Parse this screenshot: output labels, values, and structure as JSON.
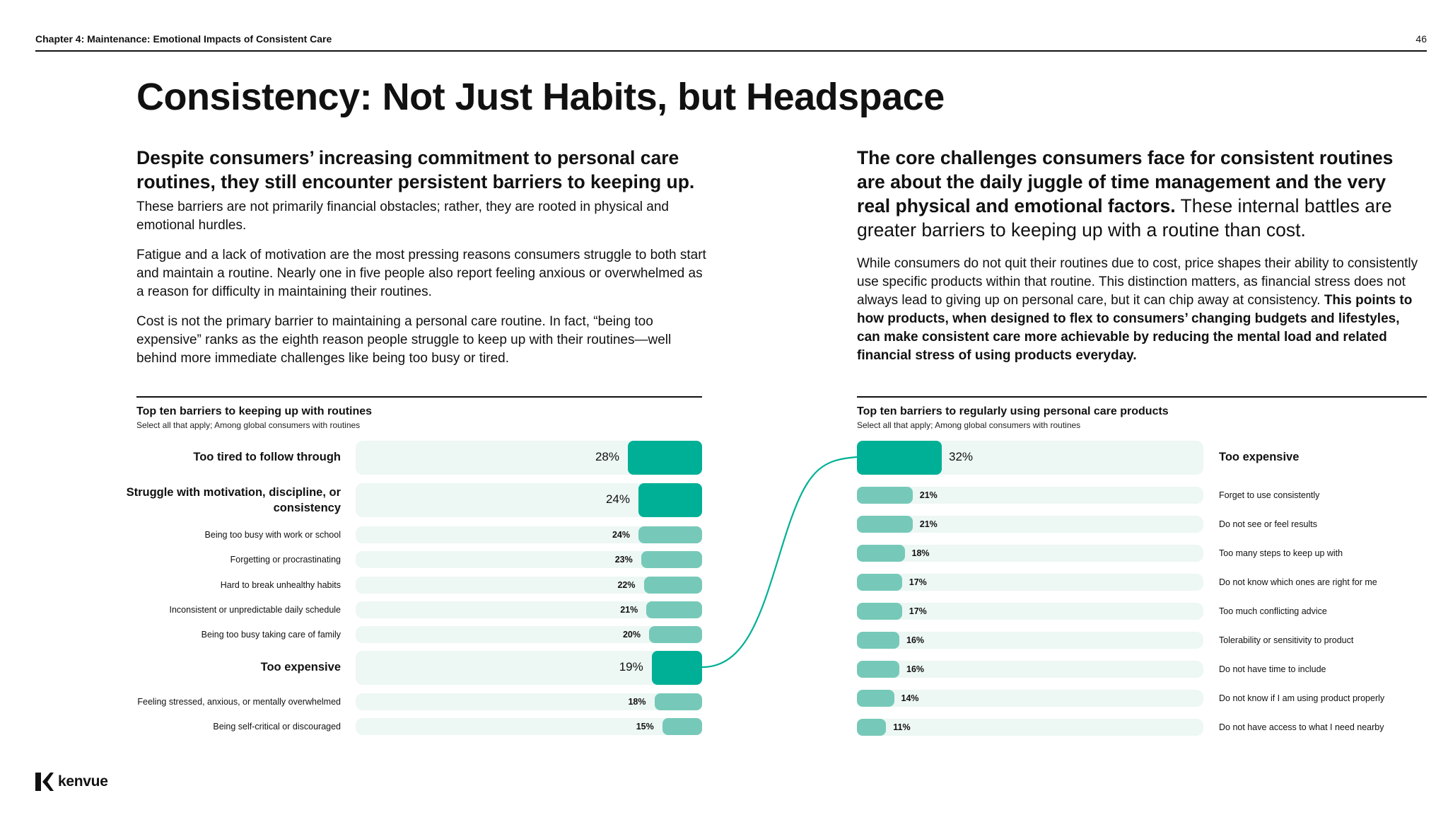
{
  "header": {
    "chapter": "Chapter 4: Maintenance: Emotional Impacts of Consistent Care",
    "page_number": "46"
  },
  "title": "Consistency: Not Just Habits, but Headspace",
  "left": {
    "lead": "Despite consumers’ increasing commitment to personal care routines, they still encounter persistent barriers to keeping up.",
    "paragraphs": [
      "These barriers are not primarily financial obstacles; rather, they are rooted in physical and emotional hurdles.",
      "Fatigue and a lack of motivation are the most pressing reasons consumers struggle to both start and maintain a routine. Nearly one in five people also report feeling anxious or overwhelmed as a reason for difficulty in maintaining their routines.",
      "Cost is not the primary barrier to maintaining a personal care routine. In fact, “being too expensive” ranks as the eighth reason people struggle to keep up with their routines—well behind more immediate challenges like being too busy or tired."
    ]
  },
  "right": {
    "lead_bold": "The core challenges consumers face for consistent routines are about the daily juggle of time management and the very real physical and emotional factors.",
    "lead_regular": " These internal battles are greater barriers to keeping up with a routine than cost.",
    "paragraph_regular": "While consumers do not quit their routines due to cost, price shapes their ability to consistently use specific products within that routine. This distinction matters, as financial stress does not always lead to giving up on personal care, but it can chip away at consistency. ",
    "paragraph_bold": "This points to how products, when designed to flex to consumers’ changing budgets and lifestyles, can make consistent care more achievable by reducing the mental load and related financial stress of using products everyday."
  },
  "chart_data": [
    {
      "type": "bar",
      "title": "Top ten barriers to keeping up with routines",
      "subtitle": "Select all that apply; Among global consumers with routines",
      "categories": [
        "Too tired to follow through",
        "Struggle with motivation, discipline, or consistency",
        "Being too busy with work or school",
        "Forgetting or procrastinating",
        "Hard to break unhealthy habits",
        "Inconsistent or unpredictable daily schedule",
        "Being too busy taking care of family",
        "Too expensive",
        "Feeling stressed, anxious, or mentally overwhelmed",
        "Being self-critical or discouraged"
      ],
      "values": [
        28,
        24,
        24,
        23,
        22,
        21,
        20,
        19,
        18,
        15
      ],
      "value_labels": [
        "28%",
        "24%",
        "24%",
        "23%",
        "22%",
        "21%",
        "20%",
        "19%",
        "18%",
        "15%"
      ],
      "highlighted": [
        true,
        true,
        false,
        false,
        false,
        false,
        false,
        true,
        false,
        false
      ],
      "orientation": "horizontal",
      "direction": "right-aligned",
      "xlim": [
        0,
        100
      ],
      "colors": {
        "highlight": "#00b096",
        "normal": "#76c9b8",
        "track": "#edf7f4"
      }
    },
    {
      "type": "bar",
      "title": "Top ten barriers to regularly using personal care products",
      "subtitle": "Select all that apply; Among global consumers with routines",
      "categories": [
        "Too expensive",
        "Forget to use consistently",
        "Do not see or feel results",
        "Too many steps to keep up with",
        "Do not know which ones are right for me",
        "Too much conflicting advice",
        "Tolerability or sensitivity to product",
        "Do not have time to include",
        "Do not know if I am using product properly",
        "Do not have access to what I need nearby"
      ],
      "values": [
        32,
        21,
        21,
        18,
        17,
        17,
        16,
        16,
        14,
        11
      ],
      "value_labels": [
        "32%",
        "21%",
        "21%",
        "18%",
        "17%",
        "17%",
        "16%",
        "16%",
        "14%",
        "11%"
      ],
      "highlighted": [
        true,
        false,
        false,
        false,
        false,
        false,
        false,
        false,
        false,
        false
      ],
      "orientation": "horizontal",
      "direction": "left-aligned",
      "xlim": [
        0,
        100
      ],
      "colors": {
        "highlight": "#00b096",
        "normal": "#76c9b8",
        "track": "#edf7f4"
      }
    }
  ],
  "logo": {
    "text": "kenvue"
  }
}
